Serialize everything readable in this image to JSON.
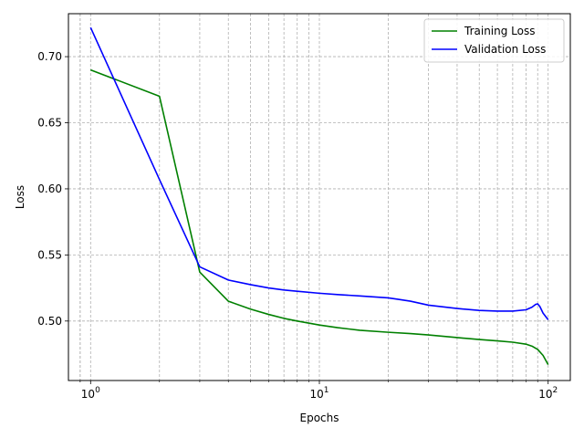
{
  "chart_data": {
    "type": "line",
    "title": "",
    "xlabel": "Epochs",
    "ylabel": "Loss",
    "xscale": "log",
    "xlim": [
      0.8,
      125
    ],
    "ylim": [
      0.455,
      0.7325
    ],
    "x_ticks": [
      {
        "value": 1,
        "base": "10",
        "exp": "0"
      },
      {
        "value": 10,
        "base": "10",
        "exp": "1"
      },
      {
        "value": 100,
        "base": "10",
        "exp": "2"
      }
    ],
    "y_ticks": [
      {
        "value": 0.5,
        "label": "0.50"
      },
      {
        "value": 0.55,
        "label": "0.55"
      },
      {
        "value": 0.6,
        "label": "0.60"
      },
      {
        "value": 0.65,
        "label": "0.65"
      },
      {
        "value": 0.7,
        "label": "0.70"
      }
    ],
    "grid": true,
    "legend_position": "top-right",
    "series": [
      {
        "name": "Training Loss",
        "color": "#008000",
        "x": [
          1,
          2,
          3,
          4,
          5,
          6,
          7,
          8,
          10,
          12,
          15,
          20,
          25,
          30,
          40,
          50,
          60,
          70,
          80,
          85,
          90,
          95,
          100
        ],
        "y": [
          0.69,
          0.67,
          0.537,
          0.515,
          0.509,
          0.505,
          0.502,
          0.5,
          0.497,
          0.495,
          0.493,
          0.4915,
          0.4905,
          0.4895,
          0.4875,
          0.486,
          0.485,
          0.484,
          0.4825,
          0.481,
          0.4785,
          0.474,
          0.467
        ]
      },
      {
        "name": "Validation Loss",
        "color": "#0000ff",
        "x": [
          1,
          2,
          3,
          4,
          5,
          6,
          7,
          8,
          10,
          12,
          15,
          20,
          22,
          25,
          30,
          40,
          50,
          60,
          70,
          80,
          85,
          88,
          90,
          92,
          95,
          100
        ],
        "y": [
          0.722,
          0.607,
          0.541,
          0.531,
          0.5275,
          0.525,
          0.5235,
          0.5225,
          0.521,
          0.52,
          0.519,
          0.5175,
          0.5165,
          0.515,
          0.512,
          0.5095,
          0.508,
          0.5075,
          0.5075,
          0.5085,
          0.5105,
          0.5125,
          0.513,
          0.511,
          0.506,
          0.501
        ]
      }
    ]
  }
}
